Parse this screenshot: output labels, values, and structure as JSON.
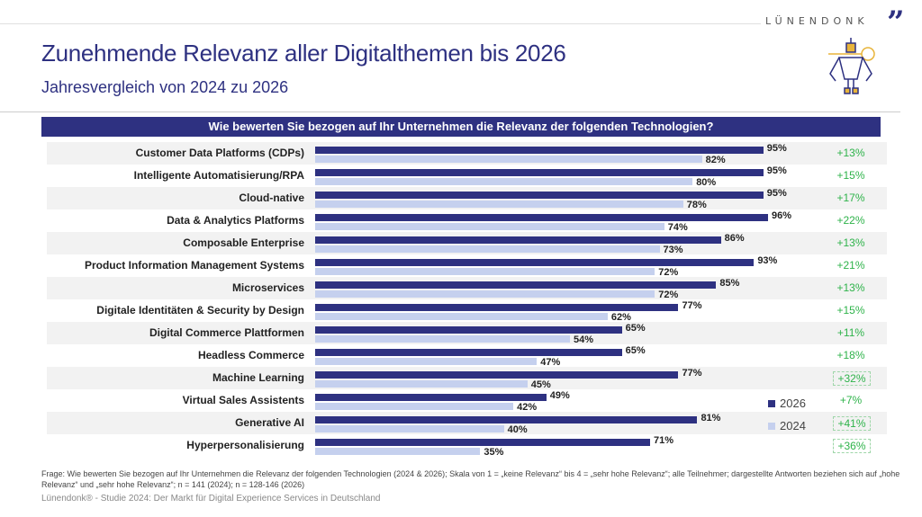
{
  "header": {
    "brand": "LÜNENDONK",
    "title": "Zunehmende Relevanz aller Digitalthemen bis 2026",
    "subtitle": "Jahresvergleich von 2024 zu 2026"
  },
  "chart_data": {
    "type": "bar",
    "title": "Wie bewerten Sie bezogen auf Ihr Unternehmen die Relevanz der folgenden Technologien?",
    "categories": [
      "Customer Data Platforms (CDPs)",
      "Intelligente Automatisierung/RPA",
      "Cloud-native",
      "Data & Analytics Platforms",
      "Composable Enterprise",
      "Product Information Management Systems",
      "Microservices",
      "Digitale Identitäten & Security by Design",
      "Digital Commerce Plattformen",
      "Headless Commerce",
      "Machine Learning",
      "Virtual Sales Assistents",
      "Generative AI",
      "Hyperpersonalisierung"
    ],
    "series": [
      {
        "name": "2026",
        "color": "#2e3181",
        "values": [
          95,
          95,
          95,
          96,
          86,
          93,
          85,
          77,
          65,
          65,
          77,
          49,
          81,
          71
        ]
      },
      {
        "name": "2024",
        "color": "#c5d0ee",
        "values": [
          82,
          80,
          78,
          74,
          73,
          72,
          72,
          62,
          54,
          47,
          45,
          42,
          40,
          35
        ]
      }
    ],
    "deltas": [
      "+13%",
      "+15%",
      "+17%",
      "+22%",
      "+13%",
      "+21%",
      "+13%",
      "+15%",
      "+11%",
      "+18%",
      "+32%",
      "+7%",
      "+41%",
      "+36%"
    ],
    "highlighted_deltas": [
      10,
      12,
      13
    ],
    "value_suffix": "%",
    "legend_position": "bottom-right",
    "delta_color": "#2eb34a"
  },
  "footer": {
    "note": "Frage: Wie bewerten Sie bezogen auf Ihr Unternehmen die Relevanz der folgenden Technologien (2024 & 2026); Skala von 1 = „keine Relevanz“ bis 4 = „sehr hohe Relevanz“; alle Teilnehmer; dargestellte Antworten beziehen sich auf „hohe Relevanz“ und „sehr hohe Relevanz“; n = 141 (2024); n = 128-146 (2026)",
    "source": "Lünendonk® - Studie 2024: Der Markt für Digital Experience Services in Deutschland"
  }
}
